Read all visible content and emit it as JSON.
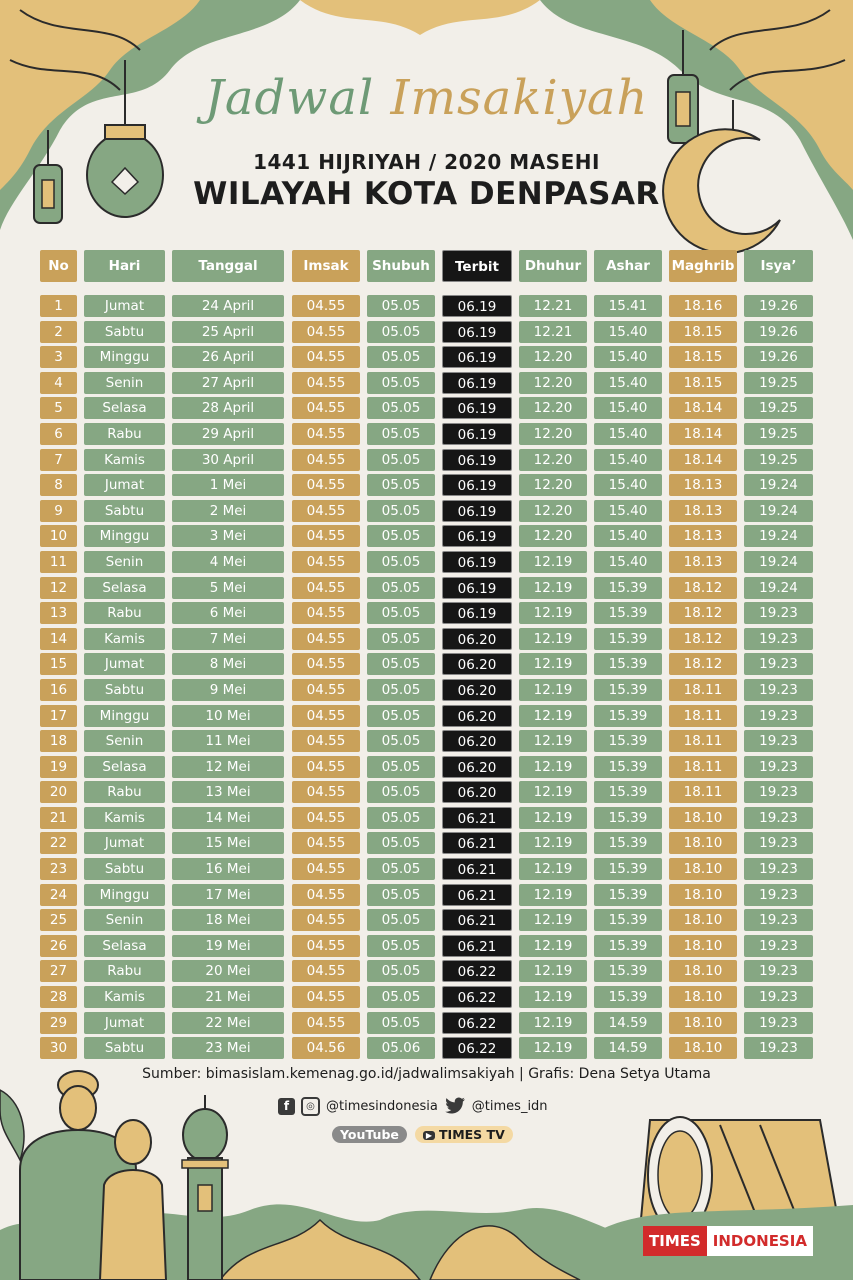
{
  "title": {
    "script_part1": "Jadwal",
    "script_part2": "Imsakiyah",
    "subtitle": "1441 HIJRIYAH / 2020 MASEHI",
    "region": "WILAYAH KOTA DENPASAR"
  },
  "table": {
    "headers": {
      "no": "No",
      "hari": "Hari",
      "tanggal": "Tanggal",
      "imsak": "Imsak",
      "shubuh": "Shubuh",
      "terbit": "Terbit",
      "dhuhur": "Dhuhur",
      "ashar": "Ashar",
      "maghrib": "Maghrib",
      "isya": "Isya’"
    },
    "rows": [
      [
        "1",
        "Jumat",
        "24 April",
        "04.55",
        "05.05",
        "06.19",
        "12.21",
        "15.41",
        "18.16",
        "19.26"
      ],
      [
        "2",
        "Sabtu",
        "25 April",
        "04.55",
        "05.05",
        "06.19",
        "12.21",
        "15.40",
        "18.15",
        "19.26"
      ],
      [
        "3",
        "Minggu",
        "26 April",
        "04.55",
        "05.05",
        "06.19",
        "12.20",
        "15.40",
        "18.15",
        "19.26"
      ],
      [
        "4",
        "Senin",
        "27 April",
        "04.55",
        "05.05",
        "06.19",
        "12.20",
        "15.40",
        "18.15",
        "19.25"
      ],
      [
        "5",
        "Selasa",
        "28 April",
        "04.55",
        "05.05",
        "06.19",
        "12.20",
        "15.40",
        "18.14",
        "19.25"
      ],
      [
        "6",
        "Rabu",
        "29 April",
        "04.55",
        "05.05",
        "06.19",
        "12.20",
        "15.40",
        "18.14",
        "19.25"
      ],
      [
        "7",
        "Kamis",
        "30 April",
        "04.55",
        "05.05",
        "06.19",
        "12.20",
        "15.40",
        "18.14",
        "19.25"
      ],
      [
        "8",
        "Jumat",
        "1 Mei",
        "04.55",
        "05.05",
        "06.19",
        "12.20",
        "15.40",
        "18.13",
        "19.24"
      ],
      [
        "9",
        "Sabtu",
        "2 Mei",
        "04.55",
        "05.05",
        "06.19",
        "12.20",
        "15.40",
        "18.13",
        "19.24"
      ],
      [
        "10",
        "Minggu",
        "3 Mei",
        "04.55",
        "05.05",
        "06.19",
        "12.20",
        "15.40",
        "18.13",
        "19.24"
      ],
      [
        "11",
        "Senin",
        "4 Mei",
        "04.55",
        "05.05",
        "06.19",
        "12.19",
        "15.40",
        "18.13",
        "19.24"
      ],
      [
        "12",
        "Selasa",
        "5 Mei",
        "04.55",
        "05.05",
        "06.19",
        "12.19",
        "15.39",
        "18.12",
        "19.24"
      ],
      [
        "13",
        "Rabu",
        "6 Mei",
        "04.55",
        "05.05",
        "06.19",
        "12.19",
        "15.39",
        "18.12",
        "19.23"
      ],
      [
        "14",
        "Kamis",
        "7 Mei",
        "04.55",
        "05.05",
        "06.20",
        "12.19",
        "15.39",
        "18.12",
        "19.23"
      ],
      [
        "15",
        "Jumat",
        "8 Mei",
        "04.55",
        "05.05",
        "06.20",
        "12.19",
        "15.39",
        "18.12",
        "19.23"
      ],
      [
        "16",
        "Sabtu",
        "9 Mei",
        "04.55",
        "05.05",
        "06.20",
        "12.19",
        "15.39",
        "18.11",
        "19.23"
      ],
      [
        "17",
        "Minggu",
        "10 Mei",
        "04.55",
        "05.05",
        "06.20",
        "12.19",
        "15.39",
        "18.11",
        "19.23"
      ],
      [
        "18",
        "Senin",
        "11 Mei",
        "04.55",
        "05.05",
        "06.20",
        "12.19",
        "15.39",
        "18.11",
        "19.23"
      ],
      [
        "19",
        "Selasa",
        "12 Mei",
        "04.55",
        "05.05",
        "06.20",
        "12.19",
        "15.39",
        "18.11",
        "19.23"
      ],
      [
        "20",
        "Rabu",
        "13 Mei",
        "04.55",
        "05.05",
        "06.20",
        "12.19",
        "15.39",
        "18.11",
        "19.23"
      ],
      [
        "21",
        "Kamis",
        "14 Mei",
        "04.55",
        "05.05",
        "06.21",
        "12.19",
        "15.39",
        "18.10",
        "19.23"
      ],
      [
        "22",
        "Jumat",
        "15 Mei",
        "04.55",
        "05.05",
        "06.21",
        "12.19",
        "15.39",
        "18.10",
        "19.23"
      ],
      [
        "23",
        "Sabtu",
        "16 Mei",
        "04.55",
        "05.05",
        "06.21",
        "12.19",
        "15.39",
        "18.10",
        "19.23"
      ],
      [
        "24",
        "Minggu",
        "17 Mei",
        "04.55",
        "05.05",
        "06.21",
        "12.19",
        "15.39",
        "18.10",
        "19.23"
      ],
      [
        "25",
        "Senin",
        "18 Mei",
        "04.55",
        "05.05",
        "06.21",
        "12.19",
        "15.39",
        "18.10",
        "19.23"
      ],
      [
        "26",
        "Selasa",
        "19 Mei",
        "04.55",
        "05.05",
        "06.21",
        "12.19",
        "15.39",
        "18.10",
        "19.23"
      ],
      [
        "27",
        "Rabu",
        "20 Mei",
        "04.55",
        "05.05",
        "06.22",
        "12.19",
        "15.39",
        "18.10",
        "19.23"
      ],
      [
        "28",
        "Kamis",
        "21 Mei",
        "04.55",
        "05.05",
        "06.22",
        "12.19",
        "15.39",
        "18.10",
        "19.23"
      ],
      [
        "29",
        "Jumat",
        "22 Mei",
        "04.55",
        "05.05",
        "06.22",
        "12.19",
        "14.59",
        "18.10",
        "19.23"
      ],
      [
        "30",
        "Sabtu",
        "23 Mei",
        "04.56",
        "05.06",
        "06.22",
        "12.19",
        "14.59",
        "18.10",
        "19.23"
      ]
    ]
  },
  "footer": {
    "source": "Sumber: bimasislam.kemenag.go.id/jadwalimsakiyah | Grafis: Dena Setya Utama",
    "instagram_handle": "@timesindonesia",
    "twitter_handle": "@times_idn",
    "youtube_label": "YouTube",
    "youtube_channel": "TIMES TV",
    "logo_part1": "TIMES",
    "logo_part2": "INDONESIA",
    "facebook_glyph": "f",
    "instagram_glyph": "◎",
    "play_glyph": "▶"
  },
  "colors": {
    "gold": "#c9a15a",
    "green": "#86a783",
    "black": "#161616",
    "background": "#f2efe9",
    "brand_red": "#d22b2b"
  },
  "icons": [
    "facebook-icon",
    "instagram-icon",
    "twitter-icon",
    "youtube-icon",
    "lantern-icon",
    "crescent-moon-icon",
    "drum-icon",
    "mosque-tower-icon"
  ]
}
